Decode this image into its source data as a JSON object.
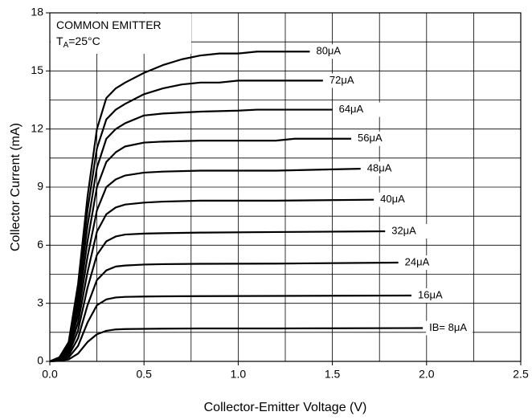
{
  "chart_data": {
    "type": "line",
    "annotations": [
      [
        "COMMON EMITTER"
      ],
      [
        "T",
        "A",
        "=25°C"
      ]
    ],
    "xlabel": "Collector-Emitter Voltage (V)",
    "ylabel": "Collector Current (mA)",
    "xlim": [
      0,
      2.5
    ],
    "ylim": [
      0,
      18
    ],
    "xticks": [
      {
        "value": 0,
        "label": "0.0"
      },
      0.5,
      {
        "value": 1,
        "label": "1.0"
      },
      1.5,
      {
        "value": 2,
        "label": "2.0"
      },
      2.5
    ],
    "yticks": [
      0,
      3,
      6,
      9,
      12,
      15,
      18
    ],
    "xgrid": [
      0.25,
      0.5,
      0.75,
      1,
      1.25,
      1.5,
      1.75,
      2,
      2.25
    ],
    "ygrid": [
      1.5,
      3,
      4.5,
      6,
      7.5,
      9,
      10.5,
      12,
      13.5,
      15,
      16.5
    ],
    "grid": true,
    "color": "#000000",
    "series": [
      {
        "name": "80μA",
        "x": [
          0,
          0.05,
          0.1,
          0.15,
          0.2,
          0.25,
          0.3,
          0.35,
          0.4,
          0.5,
          0.6,
          0.7,
          0.8,
          0.9,
          1.0,
          1.1,
          1.38
        ],
        "values": [
          0,
          0.2,
          1,
          4,
          8.5,
          12,
          13.6,
          14.1,
          14.4,
          14.9,
          15.3,
          15.6,
          15.8,
          15.9,
          15.9,
          16,
          16
        ]
      },
      {
        "name": "72μA",
        "x": [
          0,
          0.05,
          0.1,
          0.15,
          0.2,
          0.25,
          0.3,
          0.35,
          0.4,
          0.5,
          0.6,
          0.7,
          0.8,
          0.9,
          1.0,
          1.1,
          1.45
        ],
        "values": [
          0,
          0.2,
          0.9,
          3.6,
          7.8,
          11,
          12.5,
          13,
          13.3,
          13.8,
          14.1,
          14.3,
          14.4,
          14.4,
          14.5,
          14.5,
          14.5
        ]
      },
      {
        "name": "64μA",
        "x": [
          0,
          0.05,
          0.1,
          0.15,
          0.2,
          0.25,
          0.3,
          0.35,
          0.4,
          0.5,
          0.6,
          0.8,
          1.0,
          1.1,
          1.5
        ],
        "values": [
          0,
          0.2,
          0.8,
          3.2,
          7,
          10,
          11.5,
          12,
          12.3,
          12.7,
          12.8,
          12.9,
          12.95,
          13,
          13
        ]
      },
      {
        "name": "56μA",
        "x": [
          0,
          0.05,
          0.1,
          0.15,
          0.2,
          0.25,
          0.3,
          0.35,
          0.4,
          0.5,
          0.6,
          0.8,
          1.2,
          1.3,
          1.6
        ],
        "values": [
          0,
          0.15,
          0.7,
          2.8,
          6.2,
          9,
          10.3,
          10.8,
          11.1,
          11.3,
          11.35,
          11.4,
          11.4,
          11.5,
          11.5
        ]
      },
      {
        "name": "48μA",
        "x": [
          0,
          0.05,
          0.1,
          0.15,
          0.2,
          0.25,
          0.3,
          0.35,
          0.4,
          0.5,
          0.6,
          0.8,
          1.2,
          1.65
        ],
        "values": [
          0,
          0.15,
          0.6,
          2.4,
          5.4,
          7.8,
          9,
          9.4,
          9.6,
          9.75,
          9.8,
          9.85,
          9.85,
          9.95
        ]
      },
      {
        "name": "40μA",
        "x": [
          0,
          0.05,
          0.1,
          0.15,
          0.2,
          0.25,
          0.3,
          0.35,
          0.4,
          0.5,
          0.6,
          0.8,
          1.2,
          1.72
        ],
        "values": [
          0,
          0.1,
          0.5,
          2,
          4.6,
          6.7,
          7.6,
          7.95,
          8.1,
          8.2,
          8.25,
          8.3,
          8.3,
          8.35
        ]
      },
      {
        "name": "32μA",
        "x": [
          0,
          0.05,
          0.1,
          0.15,
          0.2,
          0.25,
          0.3,
          0.35,
          0.4,
          0.5,
          0.6,
          0.8,
          1.2,
          1.78
        ],
        "values": [
          0,
          0.1,
          0.4,
          1.6,
          3.8,
          5.5,
          6.2,
          6.45,
          6.55,
          6.6,
          6.62,
          6.65,
          6.68,
          6.72
        ]
      },
      {
        "name": "24μA",
        "x": [
          0,
          0.05,
          0.1,
          0.15,
          0.2,
          0.25,
          0.3,
          0.35,
          0.4,
          0.5,
          0.6,
          0.8,
          1.2,
          1.85
        ],
        "values": [
          0,
          0.08,
          0.3,
          1.2,
          2.9,
          4.2,
          4.7,
          4.9,
          4.95,
          5,
          5.02,
          5.04,
          5.05,
          5.1
        ]
      },
      {
        "name": "16μA",
        "x": [
          0,
          0.05,
          0.1,
          0.15,
          0.2,
          0.25,
          0.3,
          0.35,
          0.4,
          0.5,
          0.6,
          0.8,
          1.2,
          1.92
        ],
        "values": [
          0,
          0.05,
          0.2,
          0.8,
          2,
          2.9,
          3.2,
          3.3,
          3.33,
          3.35,
          3.36,
          3.37,
          3.38,
          3.4
        ]
      },
      {
        "name": "IB= 8μA",
        "x": [
          0,
          0.05,
          0.1,
          0.15,
          0.2,
          0.25,
          0.3,
          0.35,
          0.4,
          0.5,
          0.6,
          0.8,
          1.2,
          1.98
        ],
        "values": [
          0,
          0.03,
          0.1,
          0.4,
          1,
          1.4,
          1.58,
          1.65,
          1.67,
          1.68,
          1.69,
          1.7,
          1.7,
          1.72
        ]
      }
    ]
  }
}
